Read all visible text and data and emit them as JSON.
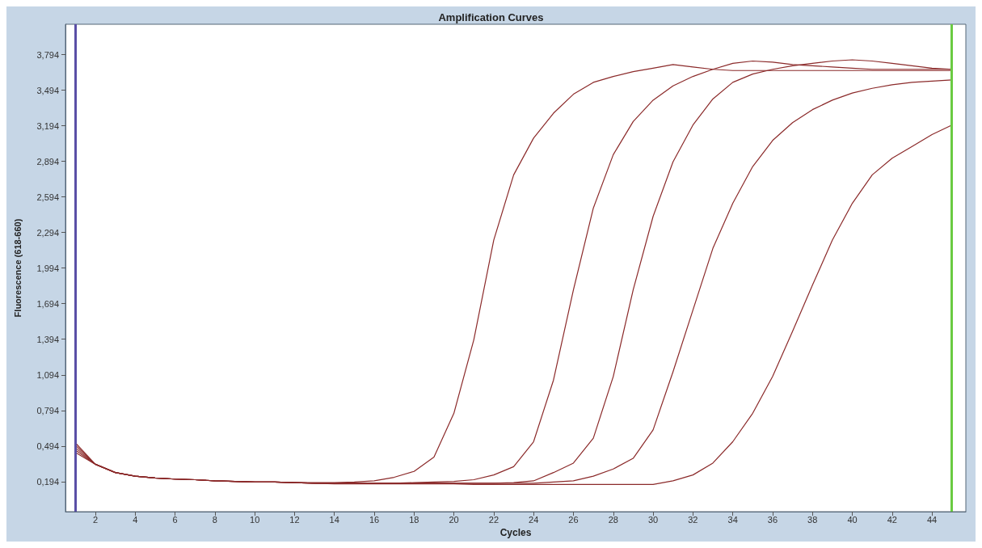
{
  "chart_data": {
    "type": "line",
    "title": "Amplification Curves",
    "xlabel": "Cycles",
    "ylabel": "Fluorescence (618-660)",
    "x": [
      1,
      2,
      3,
      4,
      5,
      6,
      7,
      8,
      9,
      10,
      11,
      12,
      13,
      14,
      15,
      16,
      17,
      18,
      19,
      20,
      21,
      22,
      23,
      24,
      25,
      26,
      27,
      28,
      29,
      30,
      31,
      32,
      33,
      34,
      35,
      36,
      37,
      38,
      39,
      40,
      41,
      42,
      43,
      44,
      45
    ],
    "xlim": [
      0.5,
      45.7
    ],
    "xticks": [
      2,
      4,
      6,
      8,
      10,
      12,
      14,
      16,
      18,
      20,
      22,
      24,
      26,
      28,
      30,
      32,
      34,
      36,
      38,
      40,
      42,
      44
    ],
    "ylim": [
      -0.06,
      4.05
    ],
    "yticks": [
      {
        "value": 0.194,
        "label": "0,194"
      },
      {
        "value": 0.494,
        "label": "0,494"
      },
      {
        "value": 0.794,
        "label": "0,794"
      },
      {
        "value": 1.094,
        "label": "1,094"
      },
      {
        "value": 1.394,
        "label": "1,394"
      },
      {
        "value": 1.694,
        "label": "1,694"
      },
      {
        "value": 1.994,
        "label": "1,994"
      },
      {
        "value": 2.294,
        "label": "2,294"
      },
      {
        "value": 2.594,
        "label": "2,594"
      },
      {
        "value": 2.894,
        "label": "2,894"
      },
      {
        "value": 3.194,
        "label": "3,194"
      },
      {
        "value": 3.494,
        "label": "3,494"
      },
      {
        "value": 3.794,
        "label": "3,794"
      }
    ],
    "grid": false,
    "marker": "none",
    "line_style": "solid",
    "ref_lines": [
      {
        "axis": "x",
        "value": 1,
        "color": "#5a4fa6"
      },
      {
        "axis": "x",
        "value": 45,
        "color": "#6acb42"
      }
    ],
    "series": [
      {
        "color": "#8b2a2a",
        "values": [
          0.52,
          0.34,
          0.27,
          0.24,
          0.225,
          0.215,
          0.21,
          0.2,
          0.195,
          0.19,
          0.19,
          0.185,
          0.185,
          0.185,
          0.19,
          0.2,
          0.23,
          0.28,
          0.4,
          0.77,
          1.39,
          2.23,
          2.78,
          3.09,
          3.3,
          3.46,
          3.56,
          3.61,
          3.65,
          3.68,
          3.71,
          3.69,
          3.67,
          3.66,
          3.66,
          3.66,
          3.66,
          3.66,
          3.66,
          3.66,
          3.66,
          3.66,
          3.66,
          3.66,
          3.66
        ]
      },
      {
        "color": "#8b2a2a",
        "values": [
          0.5,
          0.34,
          0.27,
          0.24,
          0.225,
          0.215,
          0.21,
          0.2,
          0.195,
          0.19,
          0.19,
          0.185,
          0.18,
          0.18,
          0.18,
          0.18,
          0.18,
          0.185,
          0.19,
          0.195,
          0.21,
          0.25,
          0.32,
          0.53,
          1.05,
          1.81,
          2.5,
          2.95,
          3.23,
          3.41,
          3.53,
          3.61,
          3.67,
          3.72,
          3.74,
          3.73,
          3.71,
          3.7,
          3.69,
          3.68,
          3.67,
          3.67,
          3.67,
          3.67,
          3.67
        ]
      },
      {
        "color": "#8b2a2a",
        "values": [
          0.48,
          0.34,
          0.27,
          0.24,
          0.225,
          0.215,
          0.21,
          0.2,
          0.195,
          0.19,
          0.19,
          0.185,
          0.18,
          0.18,
          0.18,
          0.18,
          0.18,
          0.18,
          0.18,
          0.18,
          0.18,
          0.18,
          0.185,
          0.2,
          0.27,
          0.35,
          0.56,
          1.08,
          1.81,
          2.43,
          2.89,
          3.2,
          3.42,
          3.56,
          3.63,
          3.67,
          3.7,
          3.72,
          3.74,
          3.75,
          3.74,
          3.72,
          3.7,
          3.68,
          3.67
        ]
      },
      {
        "color": "#8b2a2a",
        "values": [
          0.46,
          0.34,
          0.27,
          0.24,
          0.225,
          0.215,
          0.21,
          0.2,
          0.195,
          0.19,
          0.19,
          0.185,
          0.18,
          0.18,
          0.18,
          0.18,
          0.18,
          0.18,
          0.18,
          0.18,
          0.18,
          0.18,
          0.18,
          0.18,
          0.19,
          0.2,
          0.24,
          0.3,
          0.39,
          0.63,
          1.12,
          1.64,
          2.16,
          2.54,
          2.85,
          3.07,
          3.22,
          3.33,
          3.41,
          3.47,
          3.51,
          3.54,
          3.56,
          3.57,
          3.58
        ]
      },
      {
        "color": "#8b2a2a",
        "values": [
          0.44,
          0.34,
          0.27,
          0.24,
          0.225,
          0.215,
          0.21,
          0.2,
          0.195,
          0.19,
          0.19,
          0.185,
          0.18,
          0.175,
          0.175,
          0.175,
          0.175,
          0.175,
          0.175,
          0.175,
          0.17,
          0.17,
          0.17,
          0.17,
          0.17,
          0.17,
          0.17,
          0.17,
          0.17,
          0.17,
          0.2,
          0.25,
          0.35,
          0.53,
          0.77,
          1.08,
          1.46,
          1.85,
          2.23,
          2.54,
          2.78,
          2.92,
          3.02,
          3.12,
          3.2
        ]
      }
    ]
  }
}
